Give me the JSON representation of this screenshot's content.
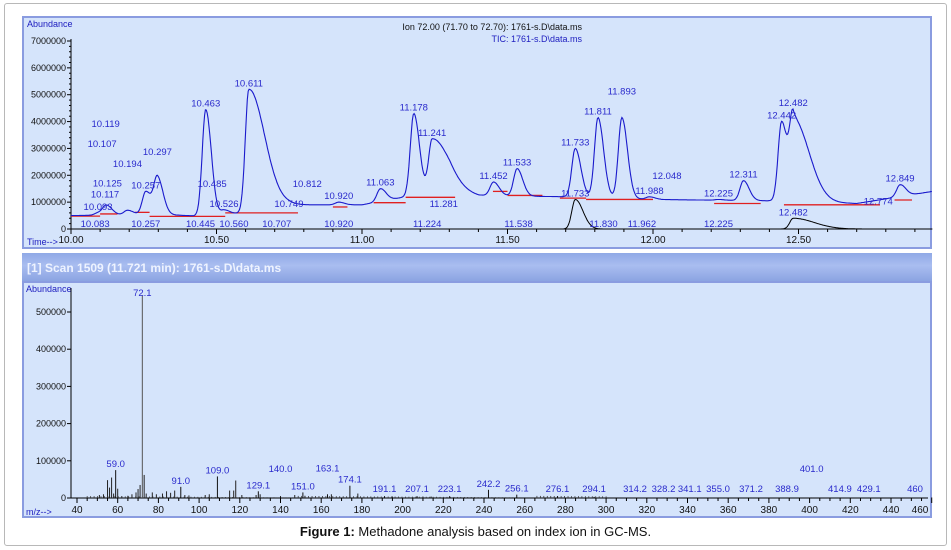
{
  "chart_data": [
    {
      "type": "line",
      "title_line1": "Ion 72.00 (71.70 to 72.70): 1761-s.D\\data.ms",
      "title_line2": "TIC: 1761-s.D\\data.ms",
      "ylabel": "Abundance",
      "xlabel": "Time-->",
      "xlim": [
        10.0,
        12.96
      ],
      "ylim": [
        0,
        7000000
      ],
      "xticks": [
        "10.00",
        "10.50",
        "11.00",
        "11.50",
        "12.00",
        "12.50"
      ],
      "yticks": [
        "0",
        "1000000",
        "2000000",
        "3000000",
        "4000000",
        "5000000",
        "6000000",
        "7000000"
      ],
      "series": [
        {
          "name": "TIC",
          "color": "#1a1acc",
          "baseline": [
            [
              10.0,
              500000
            ],
            [
              10.3,
              550000
            ],
            [
              10.5,
              450000
            ],
            [
              10.75,
              900000
            ],
            [
              11.0,
              900000
            ],
            [
              11.3,
              1500000
            ],
            [
              11.4,
              1250000
            ],
            [
              11.7,
              1200000
            ],
            [
              12.0,
              1100000
            ],
            [
              12.4,
              1050000
            ],
            [
              12.7,
              950000
            ],
            [
              12.96,
              1400000
            ]
          ],
          "peaks": [
            {
              "t": 10.093,
              "h": 600000,
              "label": "10.093"
            },
            {
              "t": 10.117,
              "h": 680000,
              "label": "10.117"
            },
            {
              "t": 10.125,
              "h": 720000,
              "label": "10.125"
            },
            {
              "t": 10.194,
              "h": 700000,
              "label": "10.194"
            },
            {
              "t": 10.257,
              "h": 1400000,
              "label": "10.257"
            },
            {
              "t": 10.297,
              "h": 1900000,
              "label": "10.297"
            },
            {
              "t": 10.463,
              "h": 4450000,
              "label": "10.463"
            },
            {
              "t": 10.526,
              "h": 700000,
              "label": "10.526"
            },
            {
              "t": 10.611,
              "h": 5200000,
              "label": "10.611"
            },
            {
              "t": 10.92,
              "h": 1000000,
              "label": "10.920"
            },
            {
              "t": 11.063,
              "h": 1500000,
              "label": "11.063"
            },
            {
              "t": 11.178,
              "h": 4300000,
              "label": "11.178"
            },
            {
              "t": 11.241,
              "h": 3350000,
              "label": "11.241"
            },
            {
              "t": 11.452,
              "h": 1750000,
              "label": "11.452"
            },
            {
              "t": 11.533,
              "h": 2250000,
              "label": "11.533"
            },
            {
              "t": 11.733,
              "h": 3000000,
              "label": "11.733"
            },
            {
              "t": 11.811,
              "h": 4150000,
              "label": "11.811"
            },
            {
              "t": 11.893,
              "h": 4150000,
              "label": "11.893"
            },
            {
              "t": 11.988,
              "h": 1200000,
              "label": "11.988"
            },
            {
              "t": 12.048,
              "h": 1000000,
              "label": "12.048"
            },
            {
              "t": 12.225,
              "h": 1100000,
              "label": "12.225"
            },
            {
              "t": 12.311,
              "h": 1800000,
              "label": "12.311"
            },
            {
              "t": 12.442,
              "h": 4000000,
              "label": "12.442"
            },
            {
              "t": 12.482,
              "h": 4100000,
              "label": "12.482"
            },
            {
              "t": 12.774,
              "h": 800000,
              "label": "12.774"
            },
            {
              "t": 12.849,
              "h": 1650000,
              "label": "12.849"
            }
          ]
        },
        {
          "name": "Ion 72.00",
          "color": "#000000",
          "peaks": [
            {
              "t": 11.733,
              "h": 1100000,
              "label": "11.733"
            },
            {
              "t": 12.482,
              "h": 400000,
              "label": "12.482"
            }
          ]
        }
      ],
      "integration_labels": [
        {
          "t": 10.083,
          "label": "10.083"
        },
        {
          "t": 10.107,
          "label": "10.107"
        },
        {
          "t": 10.119,
          "label": "10.119"
        },
        {
          "t": 10.257,
          "label": "10.257"
        },
        {
          "t": 10.445,
          "label": "10.445"
        },
        {
          "t": 10.485,
          "label": "10.485"
        },
        {
          "t": 10.56,
          "label": "10.560"
        },
        {
          "t": 10.707,
          "label": "10.707"
        },
        {
          "t": 10.749,
          "label": "10.749"
        },
        {
          "t": 10.812,
          "label": "10.812"
        },
        {
          "t": 10.92,
          "label": "10.920"
        },
        {
          "t": 11.224,
          "label": "11.224"
        },
        {
          "t": 11.281,
          "label": "11.281"
        },
        {
          "t": 11.538,
          "label": "11.538"
        },
        {
          "t": 11.83,
          "label": "11.830"
        },
        {
          "t": 11.962,
          "label": "11.962"
        },
        {
          "t": 12.225,
          "label": "12.225"
        }
      ]
    },
    {
      "type": "bar",
      "title": "[1] Scan 1509 (11.721 min): 1761-s.D\\data.ms",
      "ylabel": "Abundance",
      "xlabel": "m/z-->",
      "xlim": [
        37,
        463
      ],
      "ylim": [
        0,
        560000
      ],
      "xticks": [
        "40",
        "60",
        "80",
        "100",
        "120",
        "140",
        "160",
        "180",
        "200",
        "220",
        "240",
        "260",
        "280",
        "300",
        "320",
        "340",
        "360",
        "380",
        "400",
        "420",
        "440",
        "460"
      ],
      "yticks": [
        "0",
        "100000",
        "200000",
        "300000",
        "400000",
        "500000"
      ],
      "labeled_peaks": [
        {
          "mz": 59.0,
          "h": 75000,
          "label": "59.0"
        },
        {
          "mz": 72.1,
          "h": 545000,
          "label": "72.1"
        },
        {
          "mz": 91.0,
          "h": 30000,
          "label": "91.0"
        },
        {
          "mz": 109.0,
          "h": 58000,
          "label": "109.0"
        },
        {
          "mz": 129.1,
          "h": 18000,
          "label": "129.1"
        },
        {
          "mz": 140.0,
          "h": 5000,
          "label": "140.0"
        },
        {
          "mz": 151.0,
          "h": 15000,
          "label": "151.0"
        },
        {
          "mz": 163.1,
          "h": 10000,
          "label": "163.1"
        },
        {
          "mz": 174.1,
          "h": 33000,
          "label": "174.1"
        },
        {
          "mz": 191.1,
          "h": 5000,
          "label": "191.1"
        },
        {
          "mz": 207.1,
          "h": 5000,
          "label": "207.1"
        },
        {
          "mz": 223.1,
          "h": 5000,
          "label": "223.1"
        },
        {
          "mz": 242.2,
          "h": 22000,
          "label": "242.2"
        },
        {
          "mz": 256.1,
          "h": 9000,
          "label": "256.1"
        },
        {
          "mz": 276.1,
          "h": 5000,
          "label": "276.1"
        },
        {
          "mz": 294.1,
          "h": 3000,
          "label": "294.1"
        },
        {
          "mz": 314.2,
          "h": 1500,
          "label": "314.2"
        },
        {
          "mz": 328.2,
          "h": 1500,
          "label": "328.2"
        },
        {
          "mz": 341.1,
          "h": 1500,
          "label": "341.1"
        },
        {
          "mz": 355.0,
          "h": 1500,
          "label": "355.0"
        },
        {
          "mz": 371.2,
          "h": 1500,
          "label": "371.2"
        },
        {
          "mz": 388.9,
          "h": 1500,
          "label": "388.9"
        },
        {
          "mz": 401.0,
          "h": 1500,
          "label": "401.0"
        },
        {
          "mz": 414.9,
          "h": 1500,
          "label": "414.9"
        },
        {
          "mz": 429.1,
          "h": 1500,
          "label": "429.1"
        },
        {
          "mz": 460,
          "h": 1500,
          "label": "460"
        }
      ],
      "minor_peaks": [
        [
          51,
          8000
        ],
        [
          53,
          10000
        ],
        [
          55,
          48000
        ],
        [
          56,
          28000
        ],
        [
          57,
          55000
        ],
        [
          58,
          12000
        ],
        [
          60,
          25000
        ],
        [
          62,
          5000
        ],
        [
          65,
          6000
        ],
        [
          67,
          10000
        ],
        [
          69,
          15000
        ],
        [
          70,
          24000
        ],
        [
          71,
          35000
        ],
        [
          73,
          62000
        ],
        [
          74,
          12000
        ],
        [
          77,
          15000
        ],
        [
          79,
          10000
        ],
        [
          82,
          12000
        ],
        [
          84,
          18000
        ],
        [
          86,
          14000
        ],
        [
          88,
          20000
        ],
        [
          93,
          8000
        ],
        [
          95,
          7000
        ],
        [
          103,
          8000
        ],
        [
          105,
          10000
        ],
        [
          115,
          20000
        ],
        [
          117,
          20000
        ],
        [
          118,
          47000
        ],
        [
          121,
          8000
        ],
        [
          128,
          8000
        ],
        [
          130,
          10000
        ],
        [
          147,
          8000
        ],
        [
          152,
          6000
        ],
        [
          165,
          10000
        ],
        [
          178,
          12000
        ],
        [
          195,
          4000
        ],
        [
          210,
          4000
        ],
        [
          214,
          4000
        ]
      ]
    }
  ],
  "caption": {
    "bold": "Figure 1:",
    "text": " Methadone analysis based on index ion in GC-MS."
  },
  "colors": {
    "panel_bg": "#d5e4fb",
    "tic": "#1a1acc",
    "ion": "#000000",
    "baseline": "#e02020",
    "label": "#2a2acc"
  }
}
